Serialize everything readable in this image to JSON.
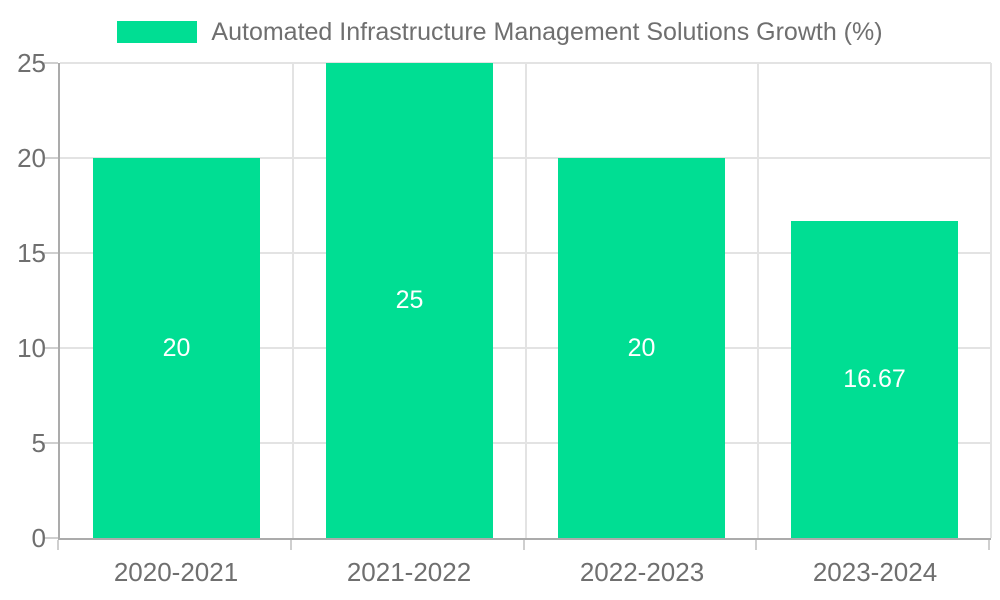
{
  "chart_data": {
    "type": "bar",
    "title": "Automated Infrastructure Management Solutions Growth (%)",
    "categories": [
      "2020-2021",
      "2021-2022",
      "2022-2023",
      "2023-2024"
    ],
    "values": [
      20,
      25,
      20,
      16.67
    ],
    "bar_labels": [
      "20",
      "25",
      "20",
      "16.67"
    ],
    "xlabel": "",
    "ylabel": "",
    "ylim": [
      0,
      25
    ],
    "yticks": [
      0,
      5,
      10,
      15,
      20,
      25
    ],
    "grid": true,
    "legend_position": "top",
    "colors": {
      "bar": "#00de93",
      "bar_label": "#ffffff",
      "axis_line": "#ababab",
      "grid_line": "#e3e3e3",
      "tick": "#cfcfcf",
      "text": "#6f6f6f",
      "background": "#ffffff"
    }
  }
}
